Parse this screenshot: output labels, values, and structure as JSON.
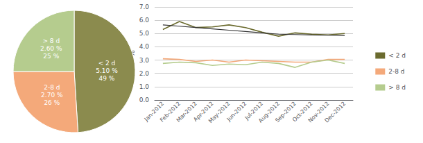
{
  "chart_data": [
    {
      "type": "pie",
      "categories": [
        "< 2 d\n5.10 %\n49 %",
        "2-8 d\n2.70 %\n26 %",
        "> 8 d\n2.60 %\n25 %"
      ],
      "values": [
        49,
        26,
        25
      ],
      "colors": [
        "#8B8B4E",
        "#F4A97A",
        "#B5CC8E"
      ]
    },
    {
      "type": "line",
      "ylabel": "%",
      "categories": [
        "Jan-2012",
        "Feb-2012",
        "Mar-2012",
        "Apr-2012",
        "May-2012",
        "Jun-2012",
        "Jul-2012",
        "Aug-2012",
        "Sep-2012",
        "Oct-2012",
        "Nov-2012",
        "Dec-2012"
      ],
      "series": [
        {
          "name": "< 2 d",
          "color": "#6B6B2E",
          "values": [
            5.3,
            5.9,
            5.45,
            5.5,
            5.65,
            5.45,
            5.1,
            4.8,
            5.05,
            4.95,
            4.9,
            5.0
          ]
        },
        {
          "color": "#333333",
          "values": [
            5.65,
            5.55,
            5.45,
            5.35,
            5.25,
            5.15,
            5.05,
            4.95,
            4.92,
            4.89,
            4.87,
            4.85
          ]
        },
        {
          "name": "2-8 d",
          "color": "#F4A97A",
          "values": [
            3.1,
            3.05,
            2.9,
            3.0,
            2.85,
            3.0,
            2.95,
            2.9,
            2.85,
            2.85,
            3.05,
            3.05
          ]
        },
        {
          "name": "> 8 d",
          "color": "#B5CC8E",
          "values": [
            2.75,
            2.85,
            2.8,
            2.6,
            2.7,
            2.65,
            2.85,
            2.75,
            2.45,
            2.85,
            3.0,
            2.75
          ]
        }
      ],
      "ylim": [
        0.0,
        7.0
      ],
      "yticks": [
        {
          "value": 0,
          "label": "0.0"
        },
        {
          "value": 1,
          "label": "1.0"
        },
        {
          "value": 2,
          "label": "2.0"
        },
        {
          "value": 3,
          "label": "3.0"
        },
        {
          "value": 4,
          "label": "4.0"
        },
        {
          "value": 5,
          "label": "5.0"
        },
        {
          "value": 6,
          "label": "6.0"
        },
        {
          "value": 7,
          "label": "7.0"
        }
      ],
      "grid": true,
      "legend": "right"
    }
  ]
}
